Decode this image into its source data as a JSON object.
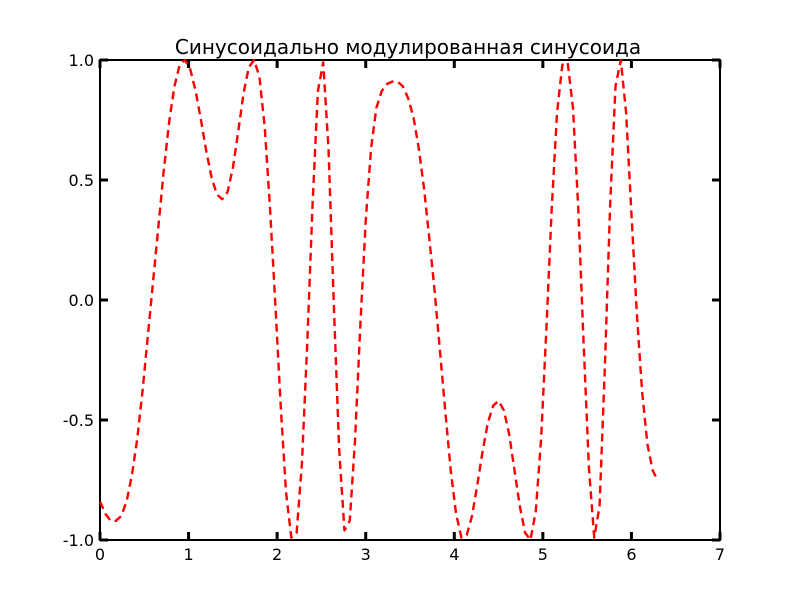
{
  "chart_data": {
    "type": "line",
    "title": "Синусоидально модулированная синусоида",
    "xlabel": "",
    "ylabel": "",
    "xlim": [
      0,
      7
    ],
    "ylim": [
      -1.0,
      1.0
    ],
    "x_ticks": [
      "0",
      "1",
      "2",
      "3",
      "4",
      "5",
      "6",
      "7"
    ],
    "y_ticks": [
      "-1.0",
      "-0.5",
      "0.0",
      "0.5",
      "1.0"
    ],
    "grid": false,
    "legend": false,
    "series": [
      {
        "line_style": "dashed",
        "color": "#ff0000",
        "points": [
          [
            0.0,
            -0.84
          ],
          [
            0.06,
            -0.89
          ],
          [
            0.12,
            -0.92
          ],
          [
            0.18,
            -0.92
          ],
          [
            0.24,
            -0.9
          ],
          [
            0.3,
            -0.84
          ],
          [
            0.36,
            -0.73
          ],
          [
            0.42,
            -0.58
          ],
          [
            0.48,
            -0.38
          ],
          [
            0.54,
            -0.15
          ],
          [
            0.6,
            0.08
          ],
          [
            0.66,
            0.31
          ],
          [
            0.72,
            0.54
          ],
          [
            0.78,
            0.74
          ],
          [
            0.84,
            0.89
          ],
          [
            0.9,
            0.98
          ],
          [
            0.96,
            1.0
          ],
          [
            1.02,
            0.96
          ],
          [
            1.08,
            0.87
          ],
          [
            1.14,
            0.75
          ],
          [
            1.2,
            0.62
          ],
          [
            1.26,
            0.51
          ],
          [
            1.32,
            0.44
          ],
          [
            1.38,
            0.42
          ],
          [
            1.44,
            0.45
          ],
          [
            1.5,
            0.55
          ],
          [
            1.56,
            0.7
          ],
          [
            1.62,
            0.86
          ],
          [
            1.68,
            0.97
          ],
          [
            1.74,
            1.0
          ],
          [
            1.8,
            0.93
          ],
          [
            1.86,
            0.72
          ],
          [
            1.92,
            0.38
          ],
          [
            1.98,
            -0.02
          ],
          [
            2.04,
            -0.44
          ],
          [
            2.1,
            -0.8
          ],
          [
            2.16,
            -0.99
          ],
          [
            2.22,
            -0.97
          ],
          [
            2.28,
            -0.68
          ],
          [
            2.34,
            -0.18
          ],
          [
            2.4,
            0.4
          ],
          [
            2.46,
            0.87
          ],
          [
            2.52,
            0.99
          ],
          [
            2.58,
            0.63
          ],
          [
            2.64,
            -0.02
          ],
          [
            2.7,
            -0.62
          ],
          [
            2.76,
            -0.96
          ],
          [
            2.82,
            -0.92
          ],
          [
            2.88,
            -0.58
          ],
          [
            2.94,
            -0.1
          ],
          [
            3.0,
            0.33
          ],
          [
            3.06,
            0.63
          ],
          [
            3.12,
            0.8
          ],
          [
            3.18,
            0.87
          ],
          [
            3.24,
            0.9
          ],
          [
            3.3,
            0.91
          ],
          [
            3.36,
            0.91
          ],
          [
            3.42,
            0.89
          ],
          [
            3.48,
            0.84
          ],
          [
            3.54,
            0.76
          ],
          [
            3.6,
            0.63
          ],
          [
            3.66,
            0.46
          ],
          [
            3.72,
            0.25
          ],
          [
            3.78,
            0.03
          ],
          [
            3.84,
            -0.22
          ],
          [
            3.9,
            -0.47
          ],
          [
            3.96,
            -0.71
          ],
          [
            4.02,
            -0.89
          ],
          [
            4.08,
            -0.99
          ],
          [
            4.14,
            -0.98
          ],
          [
            4.2,
            -0.9
          ],
          [
            4.26,
            -0.77
          ],
          [
            4.32,
            -0.63
          ],
          [
            4.38,
            -0.51
          ],
          [
            4.44,
            -0.44
          ],
          [
            4.5,
            -0.42
          ],
          [
            4.56,
            -0.46
          ],
          [
            4.62,
            -0.56
          ],
          [
            4.68,
            -0.71
          ],
          [
            4.74,
            -0.86
          ],
          [
            4.8,
            -0.97
          ],
          [
            4.86,
            -1.0
          ],
          [
            4.92,
            -0.88
          ],
          [
            4.98,
            -0.58
          ],
          [
            5.04,
            -0.12
          ],
          [
            5.1,
            0.38
          ],
          [
            5.16,
            0.78
          ],
          [
            5.22,
            0.98
          ],
          [
            5.28,
            0.99
          ],
          [
            5.34,
            0.8
          ],
          [
            5.4,
            0.38
          ],
          [
            5.46,
            -0.18
          ],
          [
            5.52,
            -0.7
          ],
          [
            5.58,
            -0.99
          ],
          [
            5.64,
            -0.86
          ],
          [
            5.7,
            -0.28
          ],
          [
            5.76,
            0.4
          ],
          [
            5.82,
            0.89
          ],
          [
            5.88,
            1.0
          ],
          [
            5.94,
            0.78
          ],
          [
            6.0,
            0.36
          ],
          [
            6.06,
            -0.05
          ],
          [
            6.12,
            -0.38
          ],
          [
            6.18,
            -0.6
          ],
          [
            6.24,
            -0.71
          ],
          [
            6.28,
            -0.74
          ]
        ]
      }
    ]
  }
}
